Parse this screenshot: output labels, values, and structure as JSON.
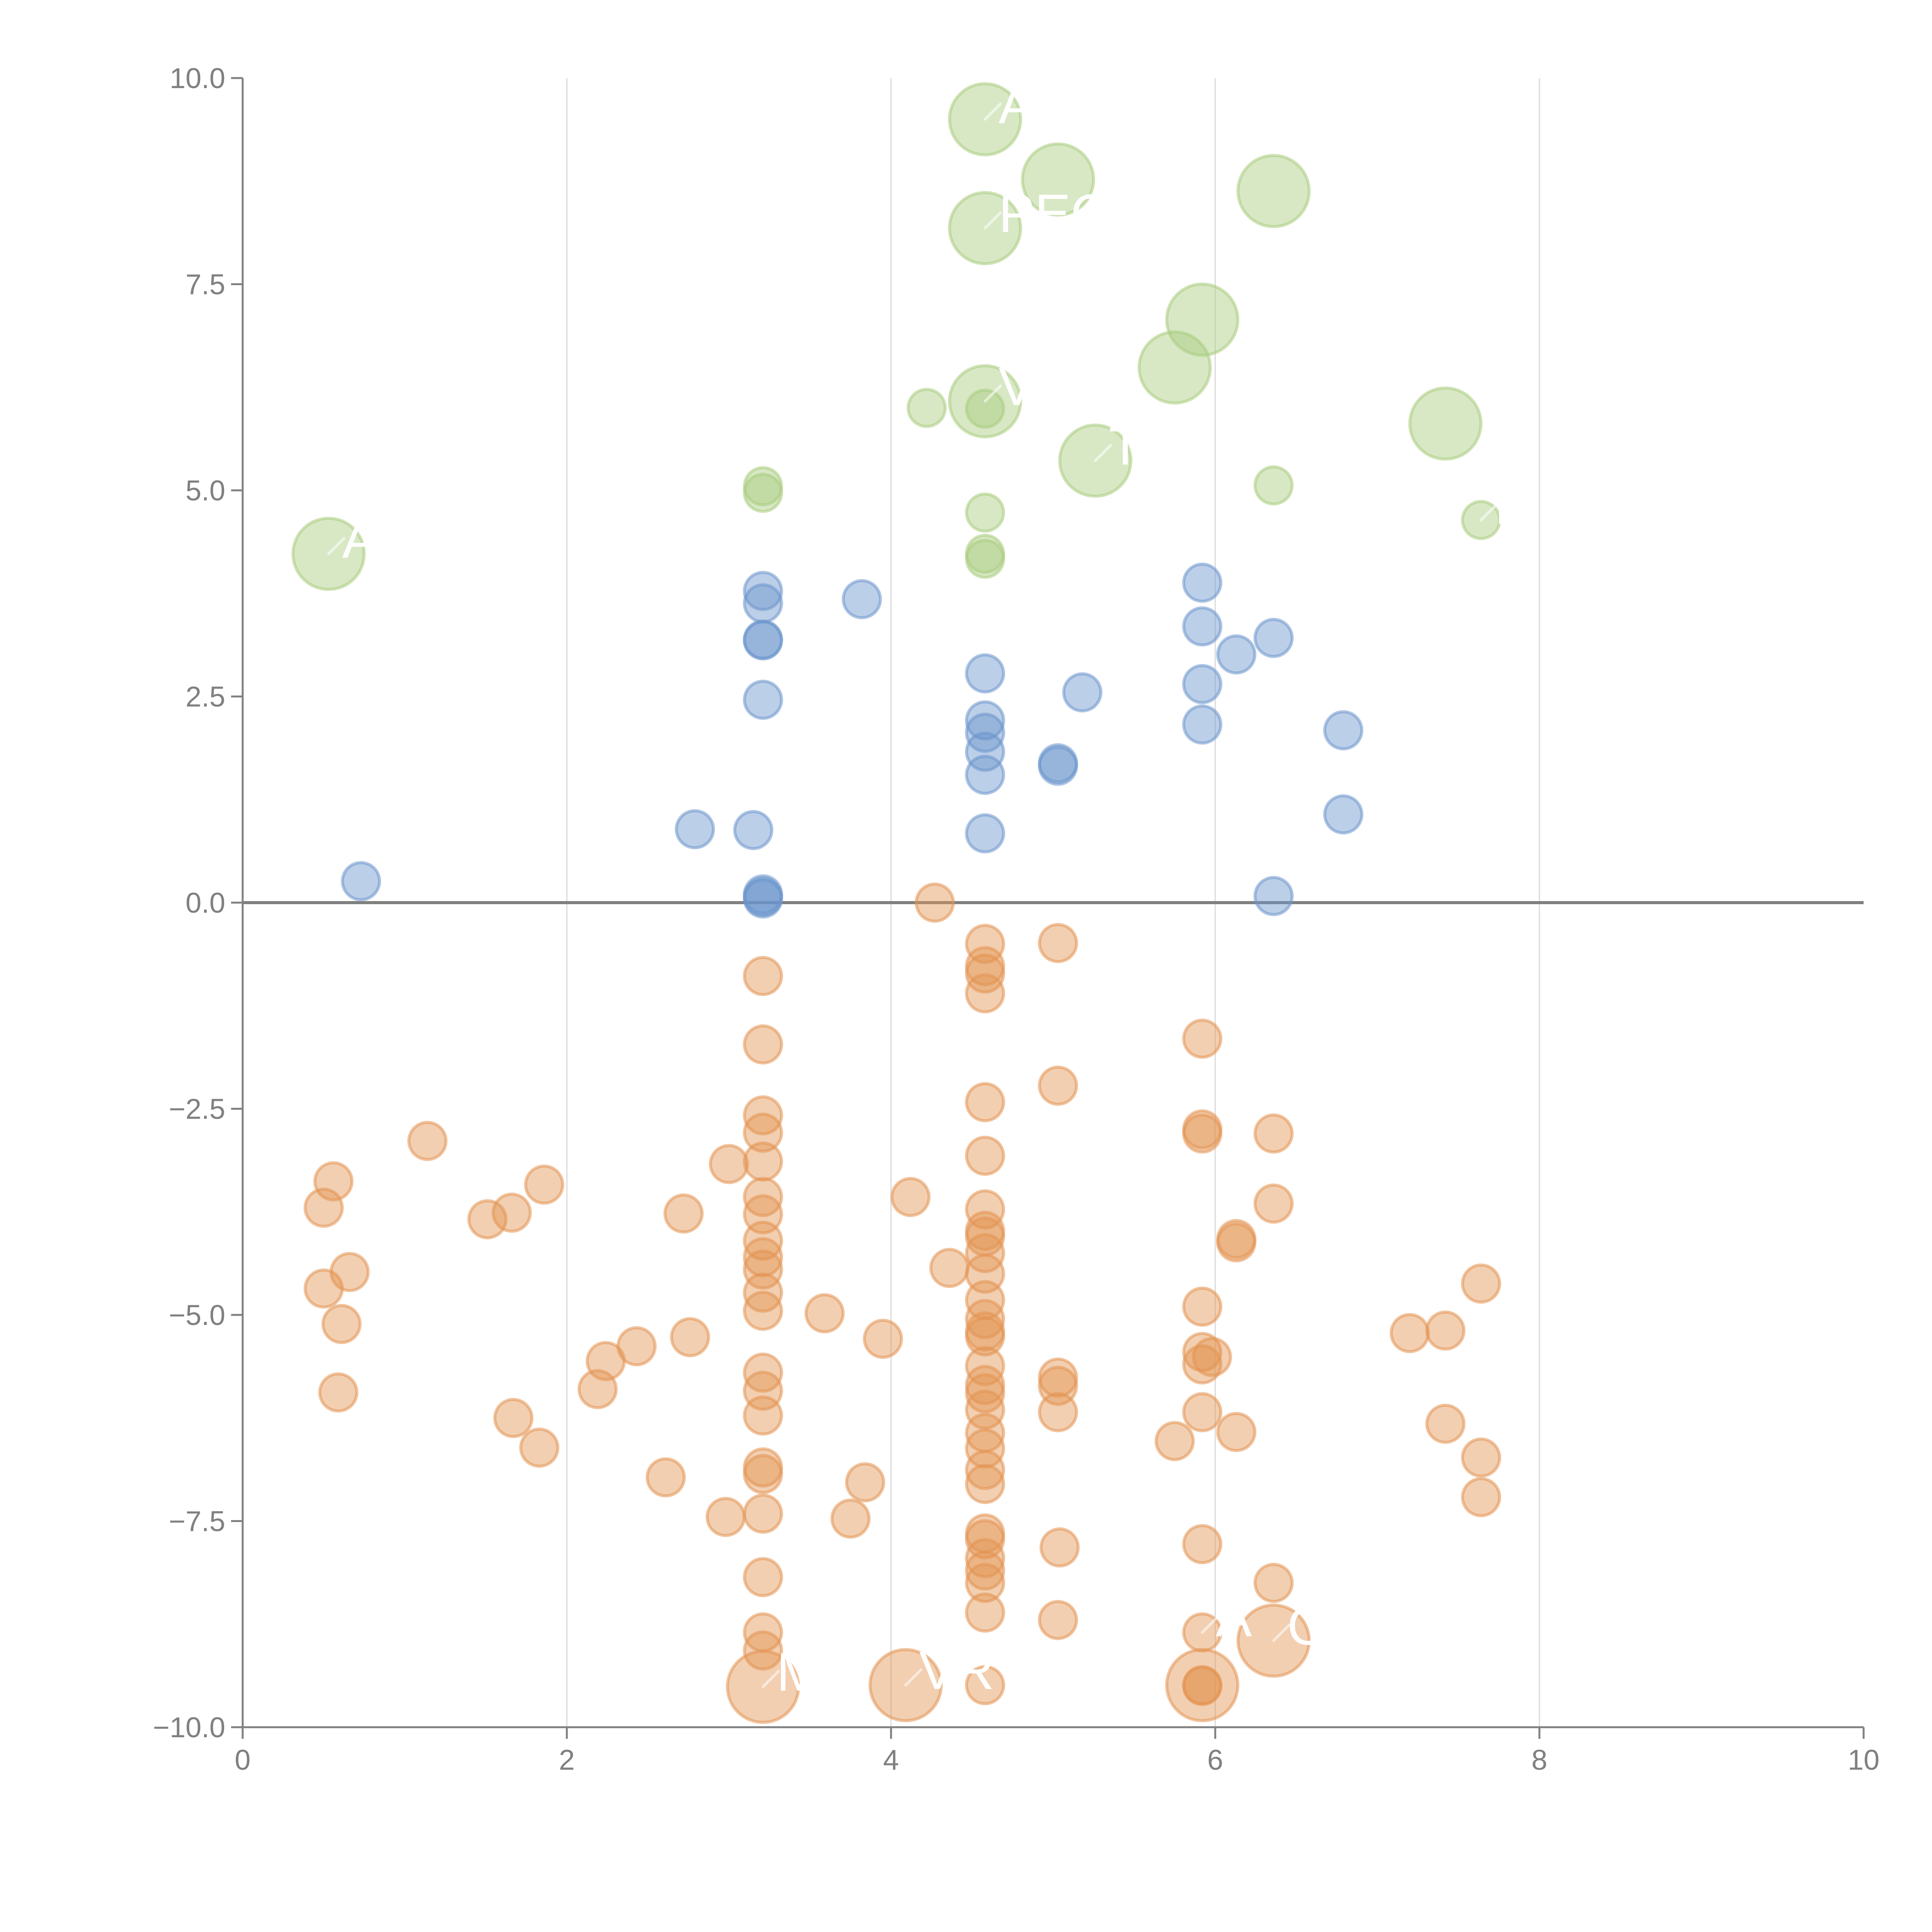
{
  "chart_data": {
    "type": "scatter",
    "title": "",
    "xlabel": "",
    "ylabel": "",
    "xlim": [
      0,
      10
    ],
    "ylim": [
      -10,
      10
    ],
    "x_ticks": [
      "0",
      "2",
      "4",
      "6",
      "8",
      "10"
    ],
    "y_ticks": [
      "10.0",
      "7.5",
      "5.0",
      "2.5",
      "0.0",
      "−2.5",
      "−5.0",
      "−7.5",
      "−10.0"
    ],
    "grid": "vertical",
    "reference_line_y": 0,
    "legend": "none",
    "series": [
      {
        "name": "green",
        "color": "#a9cc7e",
        "points": [
          {
            "x": 0.53,
            "y": 4.23,
            "size": "large",
            "label": "A"
          },
          {
            "x": 4.58,
            "y": 9.5,
            "size": "large",
            "label": "A"
          },
          {
            "x": 5.03,
            "y": 8.77,
            "size": "large",
            "label": ""
          },
          {
            "x": 4.58,
            "y": 8.18,
            "size": "large",
            "label": "PEOP"
          },
          {
            "x": 6.36,
            "y": 8.63,
            "size": "large",
            "label": ""
          },
          {
            "x": 5.92,
            "y": 7.07,
            "size": "large",
            "label": ""
          },
          {
            "x": 5.75,
            "y": 6.49,
            "size": "large",
            "label": ""
          },
          {
            "x": 4.58,
            "y": 6.08,
            "size": "large",
            "label": "V"
          },
          {
            "x": 5.26,
            "y": 5.36,
            "size": "large",
            "label": "T"
          },
          {
            "x": 7.42,
            "y": 5.81,
            "size": "large",
            "label": ""
          },
          {
            "x": 4.22,
            "y": 6.0,
            "size": "small"
          },
          {
            "x": 4.58,
            "y": 5.99,
            "size": "small"
          },
          {
            "x": 3.21,
            "y": 5.05,
            "size": "small"
          },
          {
            "x": 3.21,
            "y": 4.97,
            "size": "small"
          },
          {
            "x": 6.36,
            "y": 5.06,
            "size": "small"
          },
          {
            "x": 4.58,
            "y": 4.73,
            "size": "small"
          },
          {
            "x": 4.58,
            "y": 4.23,
            "size": "small"
          },
          {
            "x": 4.58,
            "y": 4.17,
            "size": "small"
          },
          {
            "x": 7.64,
            "y": 4.64,
            "size": "small",
            "label": "H"
          }
        ]
      },
      {
        "name": "blue",
        "color": "#6b95cc",
        "points": [
          {
            "x": 0.73,
            "y": 0.26
          },
          {
            "x": 2.79,
            "y": 0.89
          },
          {
            "x": 3.15,
            "y": 0.88
          },
          {
            "x": 3.21,
            "y": 3.78
          },
          {
            "x": 3.21,
            "y": 3.63
          },
          {
            "x": 3.21,
            "y": 3.19
          },
          {
            "x": 3.21,
            "y": 3.18
          },
          {
            "x": 3.21,
            "y": 2.46
          },
          {
            "x": 3.21,
            "y": 0.1
          },
          {
            "x": 3.21,
            "y": 0.07
          },
          {
            "x": 3.21,
            "y": 0.05
          },
          {
            "x": 3.82,
            "y": 3.68
          },
          {
            "x": 4.58,
            "y": 2.78
          },
          {
            "x": 4.58,
            "y": 2.21
          },
          {
            "x": 4.58,
            "y": 2.06
          },
          {
            "x": 4.58,
            "y": 1.83
          },
          {
            "x": 4.58,
            "y": 1.55
          },
          {
            "x": 4.58,
            "y": 0.84
          },
          {
            "x": 5.03,
            "y": 1.69
          },
          {
            "x": 5.03,
            "y": 1.66
          },
          {
            "x": 5.18,
            "y": 2.55
          },
          {
            "x": 5.92,
            "y": 3.88
          },
          {
            "x": 5.92,
            "y": 3.35
          },
          {
            "x": 5.92,
            "y": 2.65
          },
          {
            "x": 5.92,
            "y": 2.16
          },
          {
            "x": 6.13,
            "y": 3.01
          },
          {
            "x": 6.36,
            "y": 3.21
          },
          {
            "x": 6.36,
            "y": 0.08
          },
          {
            "x": 6.79,
            "y": 2.09
          },
          {
            "x": 6.79,
            "y": 1.07
          }
        ]
      },
      {
        "name": "orange",
        "color": "#e39452",
        "points": [
          {
            "x": 0.5,
            "y": -3.7
          },
          {
            "x": 0.56,
            "y": -3.38
          },
          {
            "x": 0.5,
            "y": -4.68
          },
          {
            "x": 0.66,
            "y": -4.48
          },
          {
            "x": 0.61,
            "y": -5.11
          },
          {
            "x": 0.59,
            "y": -5.94
          },
          {
            "x": 1.14,
            "y": -2.89
          },
          {
            "x": 1.51,
            "y": -3.84
          },
          {
            "x": 1.66,
            "y": -3.76
          },
          {
            "x": 1.86,
            "y": -3.42
          },
          {
            "x": 1.67,
            "y": -6.25
          },
          {
            "x": 1.83,
            "y": -6.61
          },
          {
            "x": 2.19,
            "y": -5.9
          },
          {
            "x": 2.24,
            "y": -5.56
          },
          {
            "x": 2.43,
            "y": -5.38
          },
          {
            "x": 2.61,
            "y": -6.97
          },
          {
            "x": 2.72,
            "y": -3.77
          },
          {
            "x": 2.76,
            "y": -5.27
          },
          {
            "x": 2.98,
            "y": -7.45
          },
          {
            "x": 3.0,
            "y": -3.17
          },
          {
            "x": 3.21,
            "y": -0.89
          },
          {
            "x": 3.21,
            "y": -1.72
          },
          {
            "x": 3.21,
            "y": -2.58
          },
          {
            "x": 3.21,
            "y": -2.79
          },
          {
            "x": 3.21,
            "y": -3.14
          },
          {
            "x": 3.21,
            "y": -3.57
          },
          {
            "x": 3.21,
            "y": -3.78
          },
          {
            "x": 3.21,
            "y": -4.1
          },
          {
            "x": 3.21,
            "y": -4.3
          },
          {
            "x": 3.21,
            "y": -4.45
          },
          {
            "x": 3.21,
            "y": -4.73
          },
          {
            "x": 3.21,
            "y": -4.95
          },
          {
            "x": 3.21,
            "y": -5.7
          },
          {
            "x": 3.21,
            "y": -5.92
          },
          {
            "x": 3.21,
            "y": -6.22
          },
          {
            "x": 3.21,
            "y": -6.85
          },
          {
            "x": 3.21,
            "y": -6.93
          },
          {
            "x": 3.21,
            "y": -7.41
          },
          {
            "x": 3.21,
            "y": -8.18
          },
          {
            "x": 3.21,
            "y": -8.85
          },
          {
            "x": 3.21,
            "y": -9.07
          },
          {
            "x": 3.21,
            "y": -9.51,
            "size": "large",
            "label": "M"
          },
          {
            "x": 3.59,
            "y": -4.98
          },
          {
            "x": 3.75,
            "y": -7.47
          },
          {
            "x": 3.84,
            "y": -7.03
          },
          {
            "x": 3.95,
            "y": -5.29
          },
          {
            "x": 4.09,
            "y": -9.49,
            "size": "large",
            "label": "VR"
          },
          {
            "x": 4.12,
            "y": -3.57
          },
          {
            "x": 4.27,
            "y": 0.0
          },
          {
            "x": 4.36,
            "y": -4.43
          },
          {
            "x": 4.58,
            "y": -0.5
          },
          {
            "x": 4.58,
            "y": -0.77
          },
          {
            "x": 4.58,
            "y": -0.86
          },
          {
            "x": 4.58,
            "y": -1.1
          },
          {
            "x": 4.58,
            "y": -2.42
          },
          {
            "x": 4.58,
            "y": -3.07
          },
          {
            "x": 4.58,
            "y": -3.72
          },
          {
            "x": 4.58,
            "y": -3.98
          },
          {
            "x": 4.58,
            "y": -4.05
          },
          {
            "x": 4.58,
            "y": -4.25
          },
          {
            "x": 4.58,
            "y": -4.5
          },
          {
            "x": 4.58,
            "y": -4.82
          },
          {
            "x": 4.58,
            "y": -5.05
          },
          {
            "x": 4.58,
            "y": -5.2
          },
          {
            "x": 4.58,
            "y": -5.26
          },
          {
            "x": 4.58,
            "y": -5.62
          },
          {
            "x": 4.58,
            "y": -5.85
          },
          {
            "x": 4.58,
            "y": -5.95
          },
          {
            "x": 4.58,
            "y": -6.15
          },
          {
            "x": 4.58,
            "y": -6.43
          },
          {
            "x": 4.58,
            "y": -6.62
          },
          {
            "x": 4.58,
            "y": -6.88
          },
          {
            "x": 4.58,
            "y": -7.05
          },
          {
            "x": 4.58,
            "y": -7.65
          },
          {
            "x": 4.58,
            "y": -7.72
          },
          {
            "x": 4.58,
            "y": -7.95
          },
          {
            "x": 4.58,
            "y": -8.1
          },
          {
            "x": 4.58,
            "y": -8.25
          },
          {
            "x": 4.58,
            "y": -8.61
          },
          {
            "x": 4.58,
            "y": -9.49
          },
          {
            "x": 5.03,
            "y": -0.49
          },
          {
            "x": 5.03,
            "y": -2.22
          },
          {
            "x": 5.03,
            "y": -5.76
          },
          {
            "x": 5.03,
            "y": -5.86
          },
          {
            "x": 5.03,
            "y": -6.18
          },
          {
            "x": 5.04,
            "y": -7.82
          },
          {
            "x": 5.03,
            "y": -8.7
          },
          {
            "x": 5.75,
            "y": -6.53
          },
          {
            "x": 5.92,
            "y": -1.65
          },
          {
            "x": 5.92,
            "y": -2.75
          },
          {
            "x": 5.92,
            "y": -2.8
          },
          {
            "x": 5.92,
            "y": -4.9
          },
          {
            "x": 5.92,
            "y": -5.45
          },
          {
            "x": 5.92,
            "y": -5.6
          },
          {
            "x": 5.98,
            "y": -5.51
          },
          {
            "x": 5.92,
            "y": -6.18
          },
          {
            "x": 5.92,
            "y": -7.78
          },
          {
            "x": 5.92,
            "y": -8.85,
            "label": "A"
          },
          {
            "x": 5.92,
            "y": -9.49,
            "size": "large"
          },
          {
            "x": 5.92,
            "y": -9.49
          },
          {
            "x": 5.92,
            "y": -9.5
          },
          {
            "x": 6.13,
            "y": -4.08
          },
          {
            "x": 6.13,
            "y": -4.12
          },
          {
            "x": 6.13,
            "y": -6.42
          },
          {
            "x": 6.36,
            "y": -2.8
          },
          {
            "x": 6.36,
            "y": -3.65
          },
          {
            "x": 6.36,
            "y": -8.25
          },
          {
            "x": 6.36,
            "y": -8.95,
            "size": "large",
            "label": "C"
          },
          {
            "x": 7.2,
            "y": -5.22
          },
          {
            "x": 7.42,
            "y": -5.19
          },
          {
            "x": 7.42,
            "y": -6.32
          },
          {
            "x": 7.64,
            "y": -4.62
          },
          {
            "x": 7.64,
            "y": -6.73
          },
          {
            "x": 7.64,
            "y": -7.21
          }
        ]
      }
    ]
  }
}
